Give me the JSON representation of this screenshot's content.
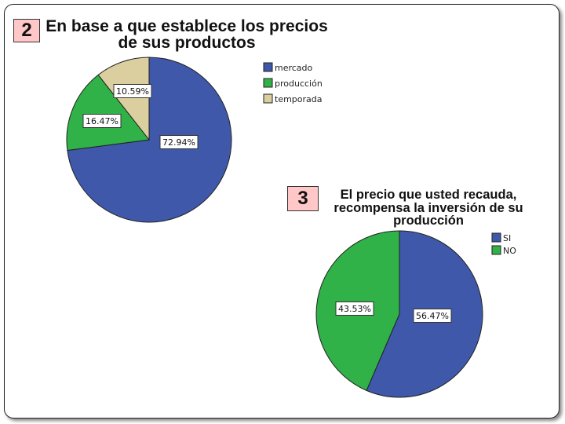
{
  "chart_data": [
    {
      "type": "pie",
      "number": "2",
      "title_lines": [
        "En base a que establece los precios",
        "de sus productos"
      ],
      "categories": [
        "mercado",
        "producción",
        "temporada"
      ],
      "values": [
        72.94,
        16.47,
        10.59
      ],
      "labels": [
        "72.94%",
        "16.47%",
        "10.59%"
      ],
      "colors": [
        "#3f58aa",
        "#30b248",
        "#dccf9f"
      ],
      "legend": "right"
    },
    {
      "type": "pie",
      "number": "3",
      "title_lines": [
        "El precio que usted recauda,",
        "recompensa la inversión de su",
        "producción"
      ],
      "categories": [
        "SI",
        "NO"
      ],
      "values": [
        56.47,
        43.53
      ],
      "labels": [
        "56.47%",
        "43.53%"
      ],
      "colors": [
        "#3f58aa",
        "#30b248"
      ],
      "legend": "right"
    }
  ]
}
